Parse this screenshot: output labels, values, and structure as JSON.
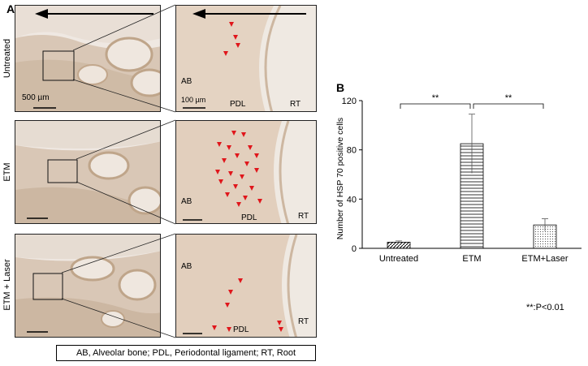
{
  "panel_a": {
    "letter": "A",
    "rows": [
      {
        "label": "Untreated",
        "low_scale": "500 µm",
        "high_scale": "100 µm",
        "labels": {
          "ab": "AB",
          "pdl": "PDL",
          "rt": "RT"
        }
      },
      {
        "label": "ETM",
        "labels": {
          "ab": "AB",
          "pdl": "PDL",
          "rt": "RT"
        }
      },
      {
        "label": "ETM + Laser",
        "labels": {
          "ab": "AB",
          "pdl": "PDL",
          "rt": "RT"
        }
      }
    ],
    "caption": "AB, Alveolar bone; PDL, Periodontal ligament; RT, Root"
  },
  "panel_b": {
    "letter": "B",
    "significance_note": "**:P<0.01",
    "brackets": [
      {
        "from": "Untreated",
        "to": "ETM",
        "label": "**"
      },
      {
        "from": "ETM",
        "to": "ETM+Laser",
        "label": "**"
      }
    ]
  },
  "chart_data": {
    "type": "bar",
    "categories": [
      "Untreated",
      "ETM",
      "ETM+Laser"
    ],
    "values": [
      5,
      85,
      19
    ],
    "errors": [
      1,
      24,
      5
    ],
    "ylabel": "Number of HSP 70 positive cells",
    "xlabel": "",
    "ylim": [
      0,
      120
    ],
    "yticks": [
      0,
      40,
      80,
      120
    ],
    "patterns": [
      "diagonal",
      "horizontal",
      "dotted"
    ],
    "grid": false
  },
  "colors": {
    "tissue": "#e8d7c8",
    "tissue_dark": "#c9ab8f",
    "arrowhead": "#e0161b"
  }
}
